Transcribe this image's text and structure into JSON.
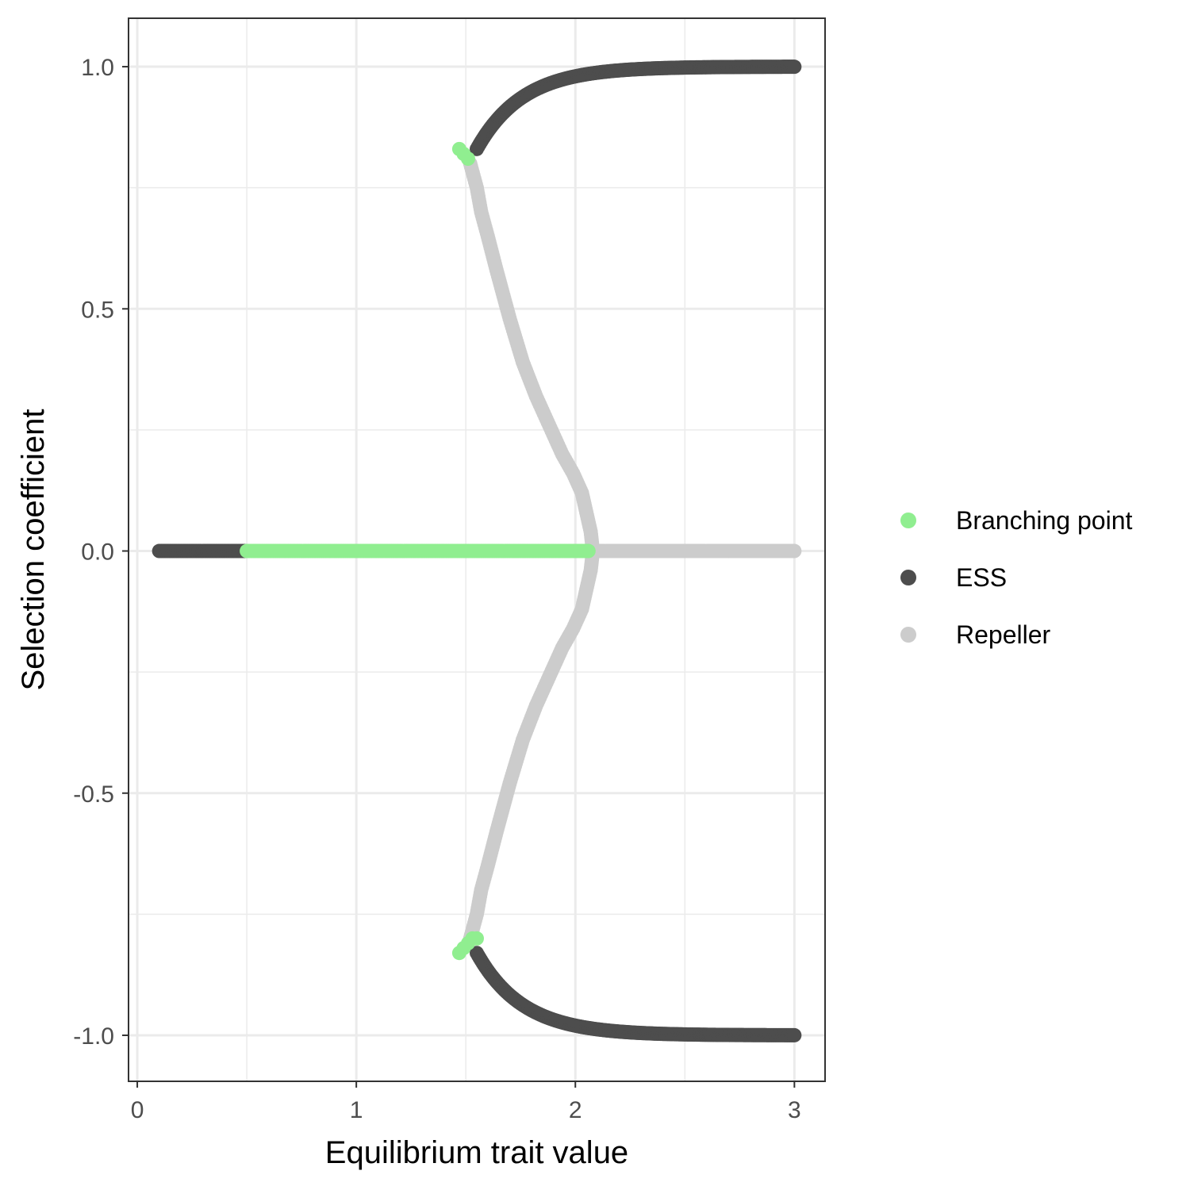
{
  "chart_data": {
    "type": "scatter",
    "title": "",
    "xlabel": "Equilibrium trait value",
    "ylabel": "Selection coefficient",
    "xlim": [
      -0.04,
      3.14
    ],
    "ylim": [
      -1.095,
      1.1
    ],
    "x_ticks": [
      0,
      1,
      2,
      3
    ],
    "x_tick_labels": [
      "0",
      "1",
      "2",
      "3"
    ],
    "y_ticks": [
      -1.0,
      -0.5,
      0.0,
      0.5,
      1.0
    ],
    "y_tick_labels": [
      "-1.0",
      "-0.5",
      "0.0",
      "0.5",
      "1.0"
    ],
    "grid": true,
    "legend_position": "right",
    "series": [
      {
        "name": "Branching point",
        "color": "#90ee90",
        "segments": [
          {
            "shape": "hline",
            "y": 0.0,
            "x_from": 0.5,
            "x_to": 2.06
          },
          {
            "shape": "points",
            "points": [
              [
                1.47,
                0.83
              ],
              [
                1.49,
                0.82
              ],
              [
                1.51,
                0.81
              ]
            ]
          },
          {
            "shape": "points",
            "points": [
              [
                1.47,
                -0.83
              ],
              [
                1.49,
                -0.82
              ],
              [
                1.51,
                -0.81
              ],
              [
                1.53,
                -0.8
              ],
              [
                1.55,
                -0.8
              ]
            ]
          }
        ]
      },
      {
        "name": "ESS",
        "color": "#4d4d4d",
        "segments": [
          {
            "shape": "hline",
            "y": 0.0,
            "x_from": 0.1,
            "x_to": 0.5
          },
          {
            "shape": "curve",
            "x_from": 1.55,
            "x_to": 3.0,
            "y_start": 0.83,
            "y_end": 1.0,
            "decay": 0.21
          },
          {
            "shape": "curve",
            "x_from": 1.55,
            "x_to": 3.0,
            "y_start": -0.83,
            "y_end": -1.0,
            "decay": 0.21
          }
        ]
      },
      {
        "name": "Repeller",
        "color": "#cccccc",
        "segments": [
          {
            "shape": "hline",
            "y": 0.0,
            "x_from": 2.06,
            "x_to": 3.0
          },
          {
            "shape": "polyline",
            "points": [
              [
                1.52,
                0.8
              ],
              [
                1.55,
                0.75
              ],
              [
                1.57,
                0.7
              ],
              [
                1.6,
                0.65
              ],
              [
                1.64,
                0.58
              ],
              [
                1.7,
                0.48
              ],
              [
                1.76,
                0.39
              ],
              [
                1.82,
                0.32
              ],
              [
                1.88,
                0.26
              ],
              [
                1.94,
                0.2
              ],
              [
                1.99,
                0.16
              ],
              [
                2.03,
                0.12
              ],
              [
                2.05,
                0.08
              ],
              [
                2.07,
                0.04
              ],
              [
                2.08,
                0.0
              ]
            ]
          },
          {
            "shape": "polyline",
            "points": [
              [
                1.52,
                -0.8
              ],
              [
                1.55,
                -0.75
              ],
              [
                1.57,
                -0.7
              ],
              [
                1.6,
                -0.65
              ],
              [
                1.64,
                -0.58
              ],
              [
                1.7,
                -0.48
              ],
              [
                1.76,
                -0.39
              ],
              [
                1.82,
                -0.32
              ],
              [
                1.88,
                -0.26
              ],
              [
                1.94,
                -0.2
              ],
              [
                1.99,
                -0.16
              ],
              [
                2.03,
                -0.12
              ],
              [
                2.05,
                -0.08
              ],
              [
                2.07,
                -0.04
              ],
              [
                2.08,
                0.0
              ]
            ]
          }
        ]
      }
    ]
  }
}
